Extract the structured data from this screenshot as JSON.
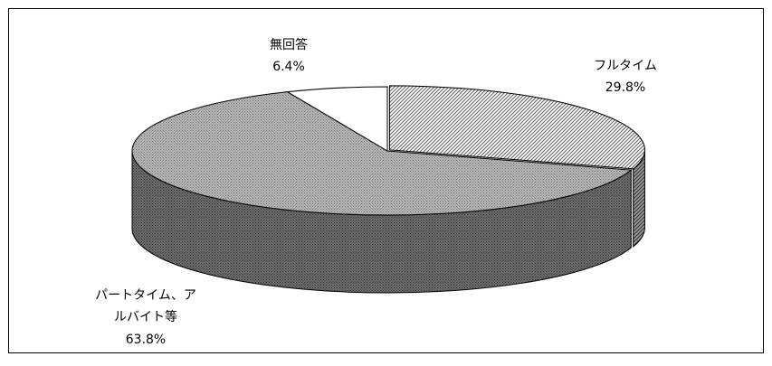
{
  "chart_data": {
    "type": "pie",
    "style": "3d-exploded",
    "legend": "none",
    "slices": [
      {
        "label": "フルタイム",
        "label_lines": [
          "フルタイム"
        ],
        "value": 29.8,
        "value_label": "29.8%",
        "pattern": "diagonal-hatch",
        "exploded": true
      },
      {
        "label": "パートタイム、アルバイト等",
        "label_lines": [
          "パートタイム、ア",
          "ルバイト等"
        ],
        "value": 63.8,
        "value_label": "63.8%",
        "pattern": "fine-crosshatch",
        "exploded": false
      },
      {
        "label": "無回答",
        "label_lines": [
          "無回答"
        ],
        "value": 6.4,
        "value_label": "6.4%",
        "pattern": "none",
        "exploded": false
      }
    ]
  }
}
